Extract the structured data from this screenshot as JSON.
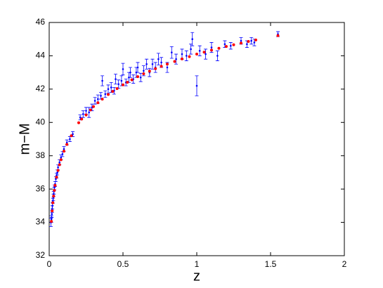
{
  "chart_data": {
    "type": "scatter",
    "x_label": "z",
    "y_label": "m−M",
    "xlim": [
      0,
      2
    ],
    "ylim": [
      32,
      46
    ],
    "xticks": [
      0,
      0.5,
      1,
      1.5,
      2
    ],
    "yticks": [
      32,
      34,
      36,
      38,
      40,
      42,
      44,
      46
    ],
    "series": [
      {
        "color": "#0000ff",
        "x": [
          0.012,
          0.015,
          0.018,
          0.02,
          0.022,
          0.025,
          0.028,
          0.03,
          0.033,
          0.036,
          0.04,
          0.045,
          0.05,
          0.055,
          0.06,
          0.07,
          0.08,
          0.09,
          0.1,
          0.12,
          0.14,
          0.16,
          0.21,
          0.23,
          0.25,
          0.27,
          0.29,
          0.31,
          0.33,
          0.35,
          0.36,
          0.38,
          0.4,
          0.42,
          0.44,
          0.45,
          0.47,
          0.49,
          0.5,
          0.52,
          0.54,
          0.55,
          0.57,
          0.59,
          0.6,
          0.62,
          0.64,
          0.66,
          0.68,
          0.7,
          0.72,
          0.74,
          0.76,
          0.8,
          0.83,
          0.86,
          0.9,
          0.93,
          0.96,
          0.97,
          1.0,
          1.02,
          1.06,
          1.1,
          1.14,
          1.19,
          1.23,
          1.3,
          1.34,
          1.37,
          1.39,
          1.55
        ],
        "values": [
          34.0,
          34.2,
          34.5,
          34.8,
          35.0,
          35.3,
          35.5,
          35.7,
          35.9,
          36.1,
          36.3,
          36.6,
          36.8,
          37.0,
          37.3,
          37.6,
          37.9,
          38.1,
          38.4,
          38.8,
          39.0,
          39.3,
          40.3,
          40.5,
          40.7,
          40.6,
          40.9,
          41.3,
          41.4,
          41.6,
          42.5,
          41.7,
          42.0,
          42.1,
          41.9,
          42.6,
          42.3,
          42.5,
          43.2,
          42.4,
          42.7,
          43.0,
          42.6,
          43.0,
          43.3,
          42.7,
          43.1,
          43.5,
          43.0,
          43.5,
          43.3,
          43.8,
          43.6,
          43.3,
          44.2,
          43.8,
          44.1,
          44.0,
          44.4,
          45.0,
          42.2,
          44.3,
          44.1,
          44.5,
          44.0,
          44.7,
          44.6,
          44.9,
          44.7,
          44.9,
          44.8,
          45.3
        ],
        "errors": [
          0.25,
          0.2,
          0.2,
          0.2,
          0.2,
          0.15,
          0.2,
          0.15,
          0.2,
          0.15,
          0.15,
          0.15,
          0.15,
          0.15,
          0.15,
          0.15,
          0.15,
          0.15,
          0.15,
          0.15,
          0.15,
          0.15,
          0.15,
          0.2,
          0.2,
          0.3,
          0.2,
          0.2,
          0.25,
          0.2,
          0.3,
          0.2,
          0.25,
          0.3,
          0.2,
          0.3,
          0.25,
          0.3,
          0.35,
          0.2,
          0.3,
          0.3,
          0.25,
          0.3,
          0.3,
          0.25,
          0.3,
          0.3,
          0.25,
          0.3,
          0.3,
          0.35,
          0.3,
          0.3,
          0.35,
          0.3,
          0.3,
          0.3,
          0.3,
          0.4,
          0.6,
          0.3,
          0.3,
          0.3,
          0.3,
          0.2,
          0.2,
          0.2,
          0.2,
          0.2,
          0.2,
          0.15
        ]
      },
      {
        "color": "#ff0000",
        "x": [
          0.015,
          0.02,
          0.025,
          0.03,
          0.035,
          0.04,
          0.05,
          0.06,
          0.07,
          0.08,
          0.1,
          0.12,
          0.15,
          0.2,
          0.22,
          0.25,
          0.28,
          0.3,
          0.33,
          0.36,
          0.4,
          0.43,
          0.46,
          0.5,
          0.53,
          0.56,
          0.6,
          0.64,
          0.68,
          0.72,
          0.76,
          0.8,
          0.85,
          0.9,
          0.95,
          1.0,
          1.05,
          1.1,
          1.15,
          1.2,
          1.25,
          1.3,
          1.35,
          1.4,
          1.55
        ],
        "values": [
          34.06,
          34.69,
          35.18,
          35.58,
          35.92,
          36.22,
          36.71,
          37.12,
          37.46,
          37.76,
          38.27,
          38.68,
          39.2,
          39.98,
          40.2,
          40.45,
          40.75,
          40.95,
          41.18,
          41.4,
          41.68,
          41.86,
          42.03,
          42.26,
          42.41,
          42.56,
          42.75,
          42.92,
          43.08,
          43.23,
          43.37,
          43.5,
          43.66,
          43.81,
          43.95,
          44.1,
          44.22,
          44.34,
          44.45,
          44.56,
          44.66,
          44.76,
          44.86,
          44.95,
          45.21
        ]
      }
    ]
  }
}
